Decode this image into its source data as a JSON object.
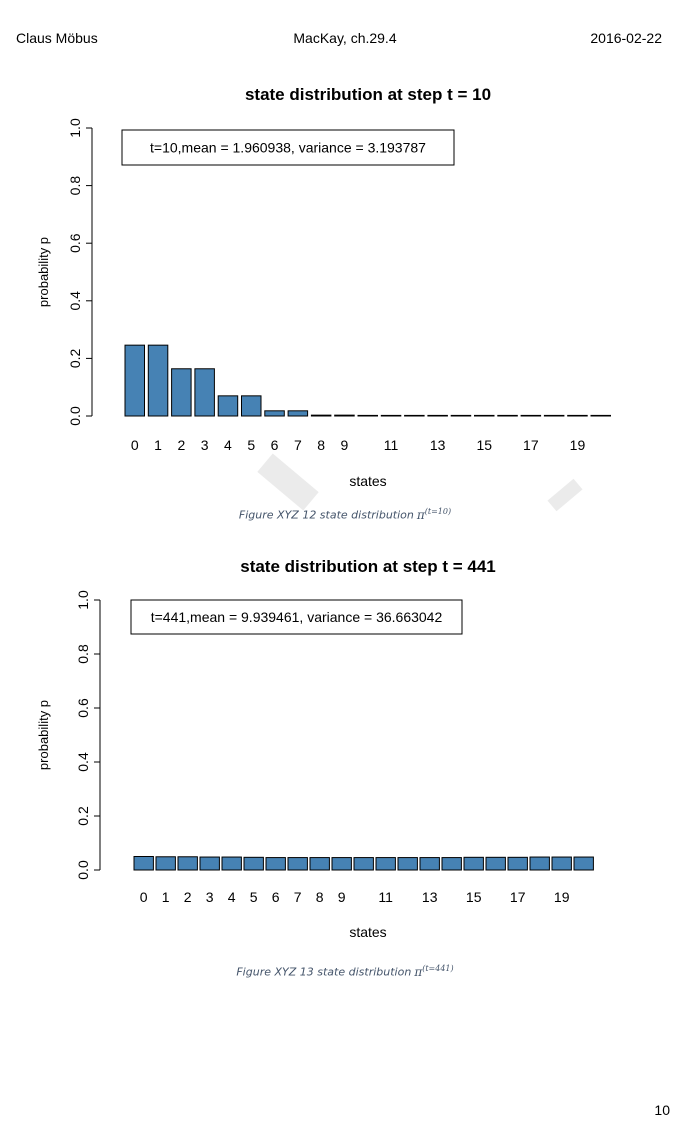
{
  "header": {
    "left": "Claus Möbus",
    "center": "MacKay, ch.29.4",
    "right": "2016-02-22"
  },
  "page_number": "10",
  "captions": [
    {
      "text": "Figure XYZ 12  state distribution",
      "symbol": "π",
      "sup": "(t=10)"
    },
    {
      "text": "Figure XYZ 13  state distribution",
      "symbol": "π",
      "sup": "(t=441)"
    }
  ],
  "colors": {
    "bar": "#4682b4",
    "bar_stroke": "#000000",
    "caption": "#44546a"
  },
  "chart_data": [
    {
      "type": "bar",
      "title": "state distribution at step t = 10",
      "xlabel": "states",
      "ylabel": "probability p",
      "ylim": [
        0,
        1.0
      ],
      "yticks": [
        "0.0",
        "0.2",
        "0.4",
        "0.6",
        "0.8",
        "1.0"
      ],
      "categories": [
        "0",
        "1",
        "2",
        "3",
        "4",
        "5",
        "6",
        "7",
        "8",
        "9",
        "10",
        "11",
        "12",
        "13",
        "14",
        "15",
        "16",
        "17",
        "18",
        "19",
        "20"
      ],
      "xtick_labels": [
        "0",
        "1",
        "2",
        "3",
        "4",
        "5",
        "6",
        "7",
        "8",
        "9",
        "",
        "11",
        "",
        "13",
        "",
        "15",
        "",
        "17",
        "",
        "19",
        ""
      ],
      "values": [
        0.246,
        0.246,
        0.164,
        0.164,
        0.07,
        0.07,
        0.018,
        0.018,
        0.003,
        0.003,
        0.0005,
        0.0002,
        0.0001,
        0.0,
        0.0,
        0.0,
        0.0,
        0.0,
        0.0,
        0.0,
        0.0
      ],
      "legend": "t=10,mean = 1.960938, variance = 3.193787",
      "legend_position": "top-left"
    },
    {
      "type": "bar",
      "title": "state distribution at step t = 441",
      "xlabel": "states",
      "ylabel": "probability p",
      "ylim": [
        0,
        1.0
      ],
      "yticks": [
        "0.0",
        "0.2",
        "0.4",
        "0.6",
        "0.8",
        "1.0"
      ],
      "categories": [
        "0",
        "1",
        "2",
        "3",
        "4",
        "5",
        "6",
        "7",
        "8",
        "9",
        "10",
        "11",
        "12",
        "13",
        "14",
        "15",
        "16",
        "17",
        "18",
        "19",
        "20"
      ],
      "xtick_labels": [
        "0",
        "1",
        "2",
        "3",
        "4",
        "5",
        "6",
        "7",
        "8",
        "9",
        "",
        "11",
        "",
        "13",
        "",
        "15",
        "",
        "17",
        "",
        "19",
        ""
      ],
      "values": [
        0.05,
        0.049,
        0.049,
        0.048,
        0.048,
        0.047,
        0.046,
        0.046,
        0.046,
        0.046,
        0.046,
        0.046,
        0.046,
        0.046,
        0.046,
        0.047,
        0.047,
        0.047,
        0.048,
        0.048,
        0.048
      ],
      "legend": "t=441,mean = 9.939461, variance = 36.663042",
      "legend_position": "top-left"
    }
  ]
}
